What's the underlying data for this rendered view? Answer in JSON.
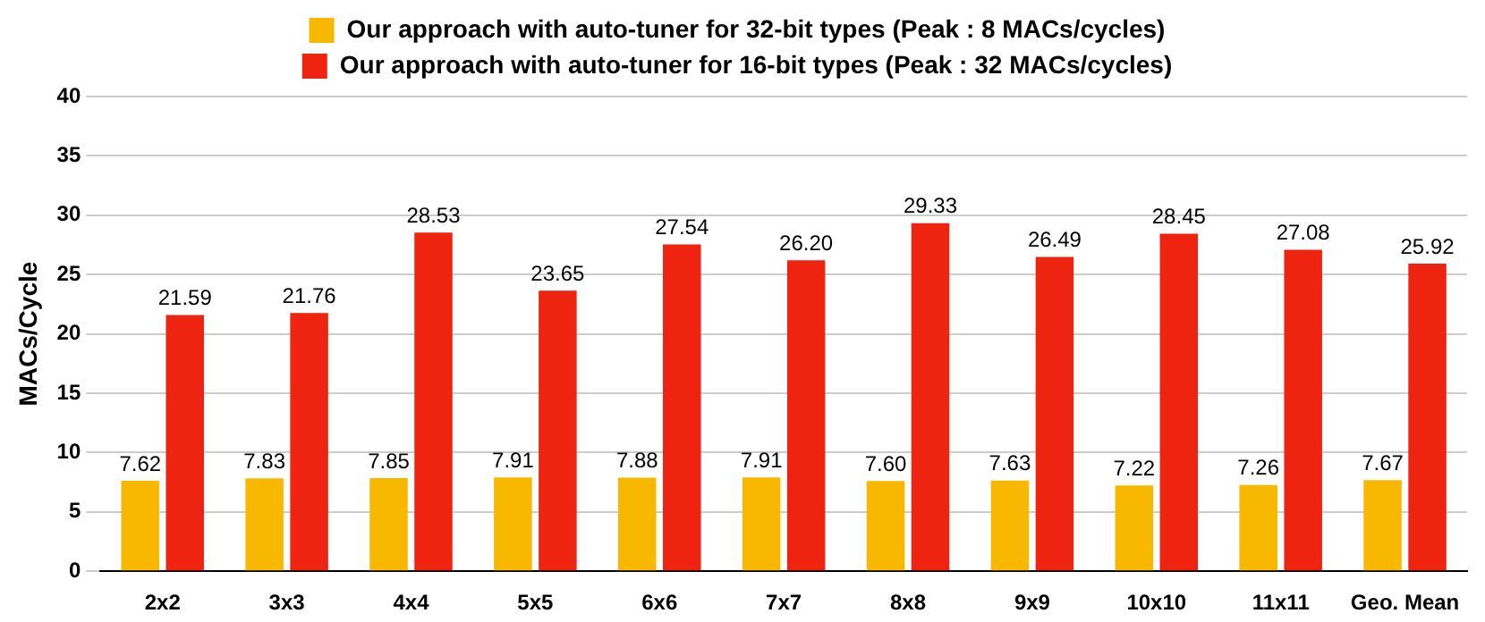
{
  "chart_data": {
    "type": "bar",
    "ylabel": "MACs/Cycle",
    "categories": [
      "2x2",
      "3x3",
      "4x4",
      "5x5",
      "6x6",
      "7x7",
      "8x8",
      "9x9",
      "10x10",
      "11x11",
      "Geo. Mean"
    ],
    "series": [
      {
        "name": "Our approach with auto-tuner for 32-bit types (Peak : 8 MACs/cycles)",
        "color": "#f8b800",
        "values": [
          7.62,
          7.83,
          7.85,
          7.91,
          7.88,
          7.91,
          7.6,
          7.63,
          7.22,
          7.26,
          7.67
        ],
        "value_labels": [
          "7.62",
          "7.83",
          "7.85",
          "7.91",
          "7.88",
          "7.91",
          "7.60",
          "7.63",
          "7.22",
          "7.26",
          "7.67"
        ]
      },
      {
        "name": "Our approach with auto-tuner for 16-bit types (Peak : 32 MACs/cycles)",
        "color": "#ee2410",
        "values": [
          21.59,
          21.76,
          28.53,
          23.65,
          27.54,
          26.2,
          29.33,
          26.49,
          28.45,
          27.08,
          25.92
        ],
        "value_labels": [
          "21.59",
          "21.76",
          "28.53",
          "23.65",
          "27.54",
          "26.20",
          "29.33",
          "26.49",
          "28.45",
          "27.08",
          "25.92"
        ]
      }
    ],
    "ylim": [
      0,
      40
    ],
    "yticks": [
      0,
      5,
      10,
      15,
      20,
      25,
      30,
      35,
      40
    ],
    "grid": "y",
    "legend": "top"
  }
}
